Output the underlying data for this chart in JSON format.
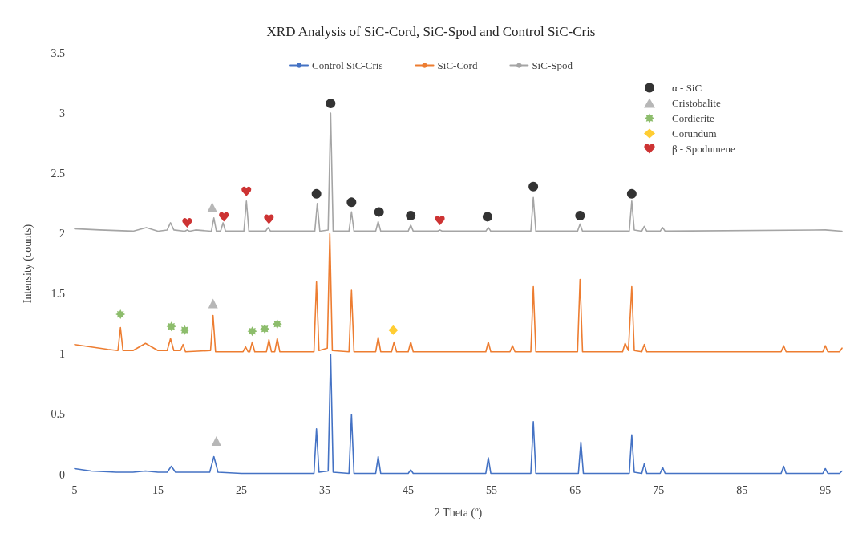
{
  "chart_data": {
    "type": "line",
    "title": "XRD Analysis of SiC-Cord, SiC-Spod and Control SiC-Cris",
    "xlabel": "2 Theta (º)",
    "ylabel": "Intensity (counts)",
    "xlim": [
      5,
      97
    ],
    "xticks": [
      5,
      15,
      25,
      35,
      45,
      55,
      65,
      75,
      85,
      95
    ],
    "ylim": [
      0,
      3.5
    ],
    "yticks": [
      0,
      0.5,
      1,
      1.5,
      2,
      2.5,
      3,
      3.5
    ],
    "legend": "top",
    "marker": "none",
    "line_style": "solid",
    "series": [
      {
        "name": "Control SiC-Cris",
        "color": "#4472c4",
        "x": [
          5,
          7,
          10,
          12,
          13.5,
          15,
          16.1,
          16.6,
          17.1,
          19,
          21.2,
          21.7,
          22.2,
          25,
          33.7,
          34.0,
          34.3,
          35.4,
          35.7,
          36.0,
          37.9,
          38.2,
          38.5,
          41.1,
          41.4,
          41.7,
          45.0,
          45.3,
          45.6,
          54.3,
          54.6,
          54.9,
          59.7,
          60.0,
          60.3,
          65.4,
          65.7,
          66.0,
          71.5,
          71.8,
          72.1,
          73.0,
          73.3,
          73.6,
          75.2,
          75.5,
          75.8,
          89.7,
          90.0,
          90.3,
          94.7,
          95.0,
          95.3,
          96.7,
          97
        ],
        "values": [
          0.05,
          0.03,
          0.02,
          0.02,
          0.03,
          0.02,
          0.02,
          0.07,
          0.02,
          0.02,
          0.02,
          0.15,
          0.02,
          0.01,
          0.01,
          0.38,
          0.02,
          0.03,
          1.0,
          0.02,
          0.01,
          0.5,
          0.01,
          0.01,
          0.15,
          0.01,
          0.01,
          0.04,
          0.01,
          0.01,
          0.14,
          0.01,
          0.01,
          0.44,
          0.01,
          0.01,
          0.27,
          0.01,
          0.01,
          0.33,
          0.02,
          0.01,
          0.09,
          0.01,
          0.01,
          0.06,
          0.01,
          0.01,
          0.07,
          0.01,
          0.01,
          0.05,
          0.01,
          0.01,
          0.03
        ]
      },
      {
        "name": "SiC-Cord",
        "color": "#ed7d31",
        "x": [
          5,
          7,
          9,
          10.2,
          10.5,
          10.8,
          12,
          13.5,
          15,
          16.1,
          16.5,
          16.9,
          17.7,
          18.0,
          18.3,
          21.3,
          21.6,
          21.9,
          25.2,
          25.5,
          25.8,
          26.0,
          26.3,
          26.6,
          28.0,
          28.3,
          28.6,
          29.0,
          29.3,
          29.6,
          33.7,
          34.0,
          34.3,
          35.3,
          35.6,
          35.9,
          37.9,
          38.2,
          38.5,
          41.1,
          41.4,
          41.7,
          43.0,
          43.3,
          43.6,
          45.0,
          45.3,
          45.6,
          54.3,
          54.6,
          54.9,
          57.2,
          57.5,
          57.8,
          59.7,
          60.0,
          60.3,
          65.3,
          65.6,
          65.9,
          70.7,
          71.0,
          71.4,
          71.8,
          72.1,
          73.0,
          73.3,
          73.6,
          89.7,
          90.0,
          90.3,
          94.7,
          95.0,
          95.3,
          96.7,
          97
        ],
        "values": [
          1.08,
          1.06,
          1.04,
          1.03,
          1.22,
          1.03,
          1.03,
          1.09,
          1.03,
          1.03,
          1.13,
          1.03,
          1.03,
          1.08,
          1.02,
          1.03,
          1.32,
          1.02,
          1.02,
          1.06,
          1.02,
          1.02,
          1.1,
          1.02,
          1.02,
          1.12,
          1.02,
          1.02,
          1.13,
          1.02,
          1.02,
          1.6,
          1.03,
          1.05,
          2.0,
          1.03,
          1.02,
          1.53,
          1.02,
          1.02,
          1.14,
          1.02,
          1.02,
          1.1,
          1.02,
          1.02,
          1.1,
          1.02,
          1.02,
          1.1,
          1.02,
          1.02,
          1.07,
          1.02,
          1.02,
          1.56,
          1.02,
          1.02,
          1.62,
          1.02,
          1.02,
          1.09,
          1.03,
          1.56,
          1.03,
          1.02,
          1.08,
          1.02,
          1.02,
          1.07,
          1.02,
          1.02,
          1.07,
          1.02,
          1.02,
          1.05
        ]
      },
      {
        "name": "SiC-Spod",
        "color": "#a5a5a5",
        "x": [
          5,
          8,
          12,
          13.6,
          15,
          16.1,
          16.5,
          16.9,
          18.2,
          18.5,
          18.8,
          19.5,
          21.4,
          21.7,
          22.0,
          22.5,
          22.8,
          23.1,
          25.3,
          25.6,
          25.9,
          27.9,
          28.2,
          28.5,
          33.8,
          34.1,
          34.4,
          35.4,
          35.7,
          36.0,
          37.9,
          38.2,
          38.5,
          41.1,
          41.4,
          41.7,
          45.0,
          45.3,
          45.6,
          48.5,
          48.8,
          49.1,
          54.3,
          54.6,
          54.9,
          59.7,
          60.0,
          60.3,
          65.3,
          65.6,
          65.9,
          71.5,
          71.8,
          72.1,
          73.0,
          73.3,
          73.6,
          75.2,
          75.5,
          75.8,
          95.0,
          97
        ],
        "values": [
          2.04,
          2.03,
          2.02,
          2.05,
          2.02,
          2.03,
          2.09,
          2.03,
          2.02,
          2.03,
          2.02,
          2.03,
          2.02,
          2.13,
          2.02,
          2.02,
          2.09,
          2.02,
          2.02,
          2.27,
          2.02,
          2.02,
          2.05,
          2.02,
          2.02,
          2.25,
          2.02,
          2.03,
          3.0,
          2.02,
          2.02,
          2.18,
          2.02,
          2.02,
          2.1,
          2.02,
          2.02,
          2.07,
          2.02,
          2.02,
          2.03,
          2.02,
          2.02,
          2.05,
          2.02,
          2.02,
          2.3,
          2.02,
          2.02,
          2.08,
          2.02,
          2.02,
          2.27,
          2.03,
          2.02,
          2.06,
          2.02,
          2.02,
          2.05,
          2.02,
          2.03,
          2.02
        ]
      },
      {
        "type": "scatter",
        "name": "α - SiC",
        "color": "#000000",
        "marker": "circle",
        "x": [
          35.7,
          34.0,
          38.2,
          41.5,
          45.3,
          54.5,
          60.0,
          65.6,
          71.8
        ],
        "values": [
          3.08,
          2.33,
          2.26,
          2.18,
          2.15,
          2.14,
          2.39,
          2.15,
          2.33
        ]
      },
      {
        "type": "scatter",
        "name": "Cristobalite",
        "color": "#a5a5a5",
        "marker": "triangle",
        "x": [
          21.5,
          21.6,
          22.0
        ],
        "values": [
          2.22,
          1.42,
          0.28
        ]
      },
      {
        "type": "scatter",
        "name": "Cordierite",
        "color": "#70ad47",
        "marker": "star",
        "x": [
          10.5,
          16.6,
          18.2,
          26.3,
          27.8,
          29.3
        ],
        "values": [
          1.33,
          1.23,
          1.2,
          1.19,
          1.21,
          1.25
        ]
      },
      {
        "type": "scatter",
        "name": "Corundum",
        "color": "#ffc000",
        "marker": "diamond",
        "x": [
          43.2
        ],
        "values": [
          1.2
        ]
      },
      {
        "type": "scatter",
        "name": "β - Spodumene",
        "color": "#c00000",
        "x": [
          18.5,
          22.9,
          25.6,
          28.3,
          48.8
        ],
        "values": [
          2.09,
          2.14,
          2.35,
          2.12,
          2.11
        ]
      }
    ]
  }
}
